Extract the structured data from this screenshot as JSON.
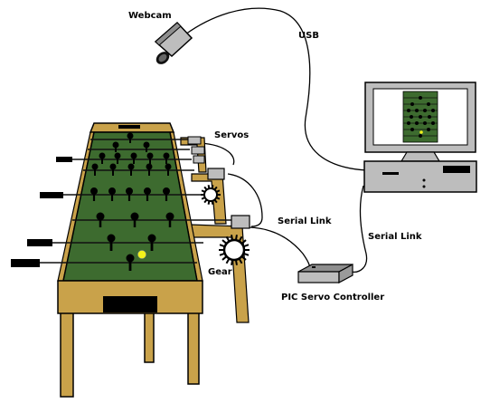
{
  "labels": {
    "webcam": "Webcam",
    "usb": "USB",
    "servos": "Servos",
    "serial_link_1": "Serial Link",
    "serial_link_2": "Serial Link",
    "gear": "Gear",
    "controller": "PIC Servo Controller"
  },
  "colors": {
    "field": "#3d6b2f",
    "wood": "#c9a24a",
    "wood_dark": "#9c7a2e",
    "ball": "#f2f21a",
    "screen_bg": "#ffffff",
    "device_gray": "#bdbdbd"
  }
}
